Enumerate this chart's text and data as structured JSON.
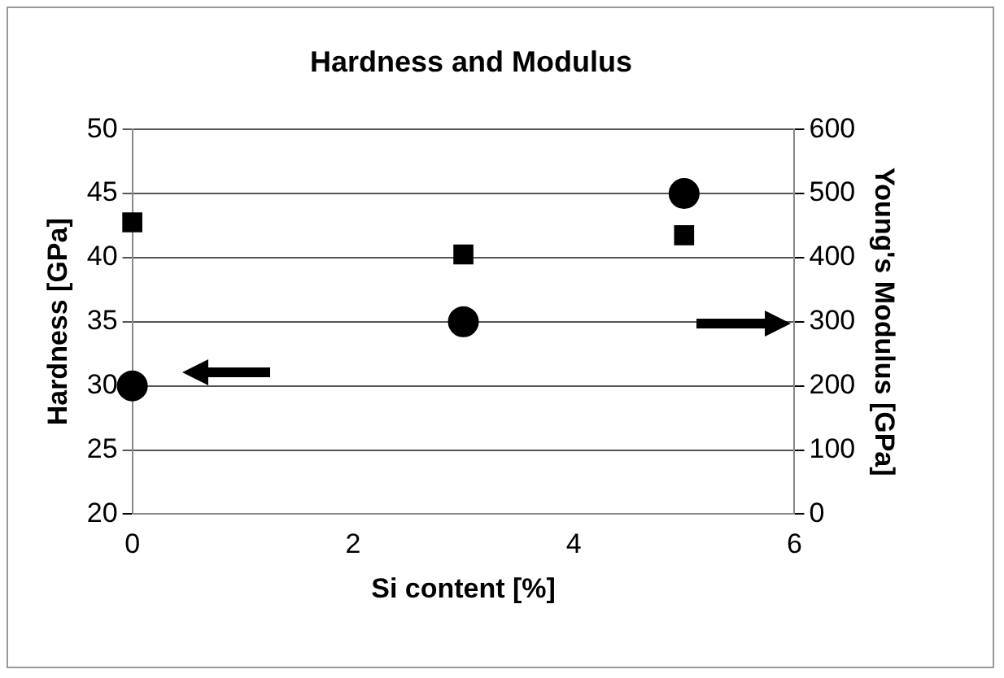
{
  "chart_data": {
    "type": "scatter",
    "title": "Hardness and Modulus",
    "xlabel": "Si content [%]",
    "ylabel": "Hardness [GPa]",
    "y2label": "Young's Modulus [GPa]",
    "x": [
      0,
      3,
      5
    ],
    "series": [
      {
        "color": "#000000",
        "marker": "circle",
        "values": [
          30,
          35,
          45
        ]
      },
      {
        "color": "#000000",
        "marker": "square",
        "axis": "y2",
        "values": [
          455,
          405,
          435
        ]
      }
    ],
    "xlim": [
      0,
      6
    ],
    "xticks": [
      0,
      2,
      4,
      6
    ],
    "ylim": [
      20,
      50
    ],
    "yticks": [
      20,
      25,
      30,
      35,
      40,
      45,
      50
    ],
    "y2lim": [
      0,
      600
    ],
    "y2ticks": [
      0,
      100,
      200,
      300,
      400,
      500,
      600
    ],
    "grid": "y",
    "legend": false
  }
}
